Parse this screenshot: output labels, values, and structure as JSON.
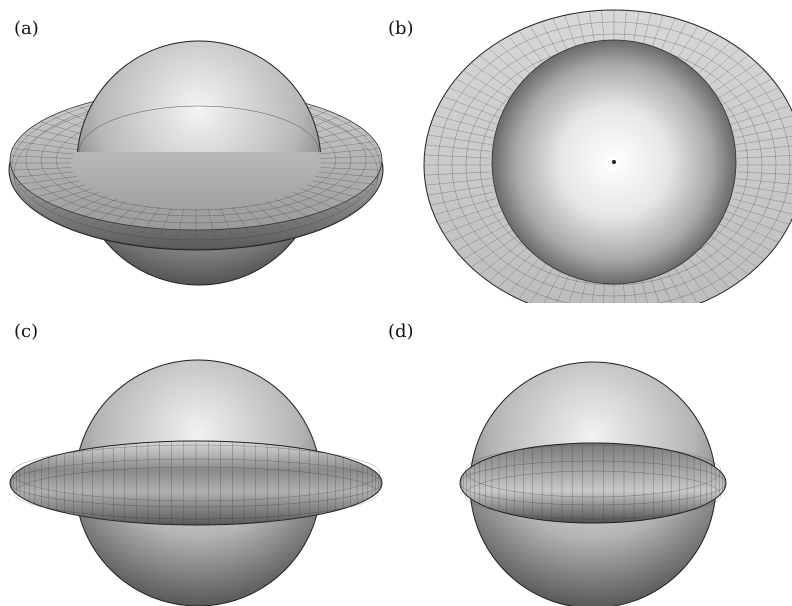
{
  "figure": {
    "panels": [
      {
        "id": "a",
        "label": "(a)",
        "view": "oblique"
      },
      {
        "id": "b",
        "label": "(b)",
        "view": "top"
      },
      {
        "id": "c",
        "label": "(c)",
        "view": "side"
      },
      {
        "id": "d",
        "label": "(d)",
        "view": "side"
      }
    ]
  },
  "colors": {
    "background": "#ffffff",
    "surface_light": "#f2f2f2",
    "surface_dark": "#3a3a3a",
    "mesh": "#1a1a1a",
    "outline": "#111111"
  }
}
